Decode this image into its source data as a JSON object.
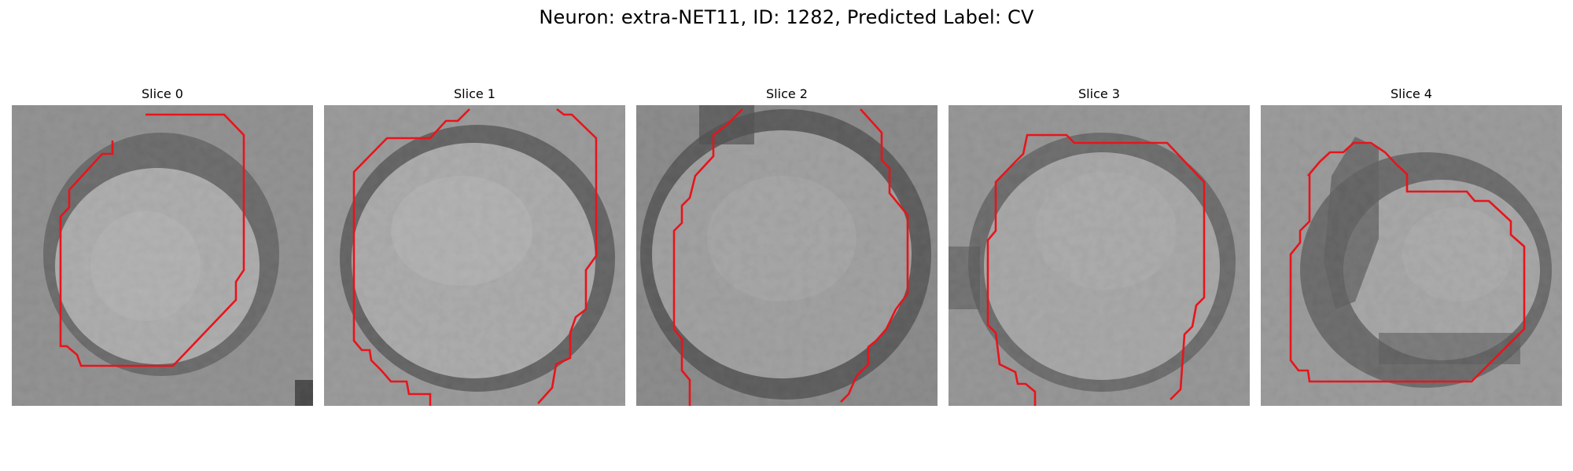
{
  "figure": {
    "title": "Neuron: extra-NET11, ID: 1282, Predicted Label: CV",
    "contour_color": "#e8141b"
  },
  "panels": [
    {
      "title": "Slice 0"
    },
    {
      "title": "Slice 1"
    },
    {
      "title": "Slice 2"
    },
    {
      "title": "Slice 3"
    },
    {
      "title": "Slice 4"
    }
  ]
}
